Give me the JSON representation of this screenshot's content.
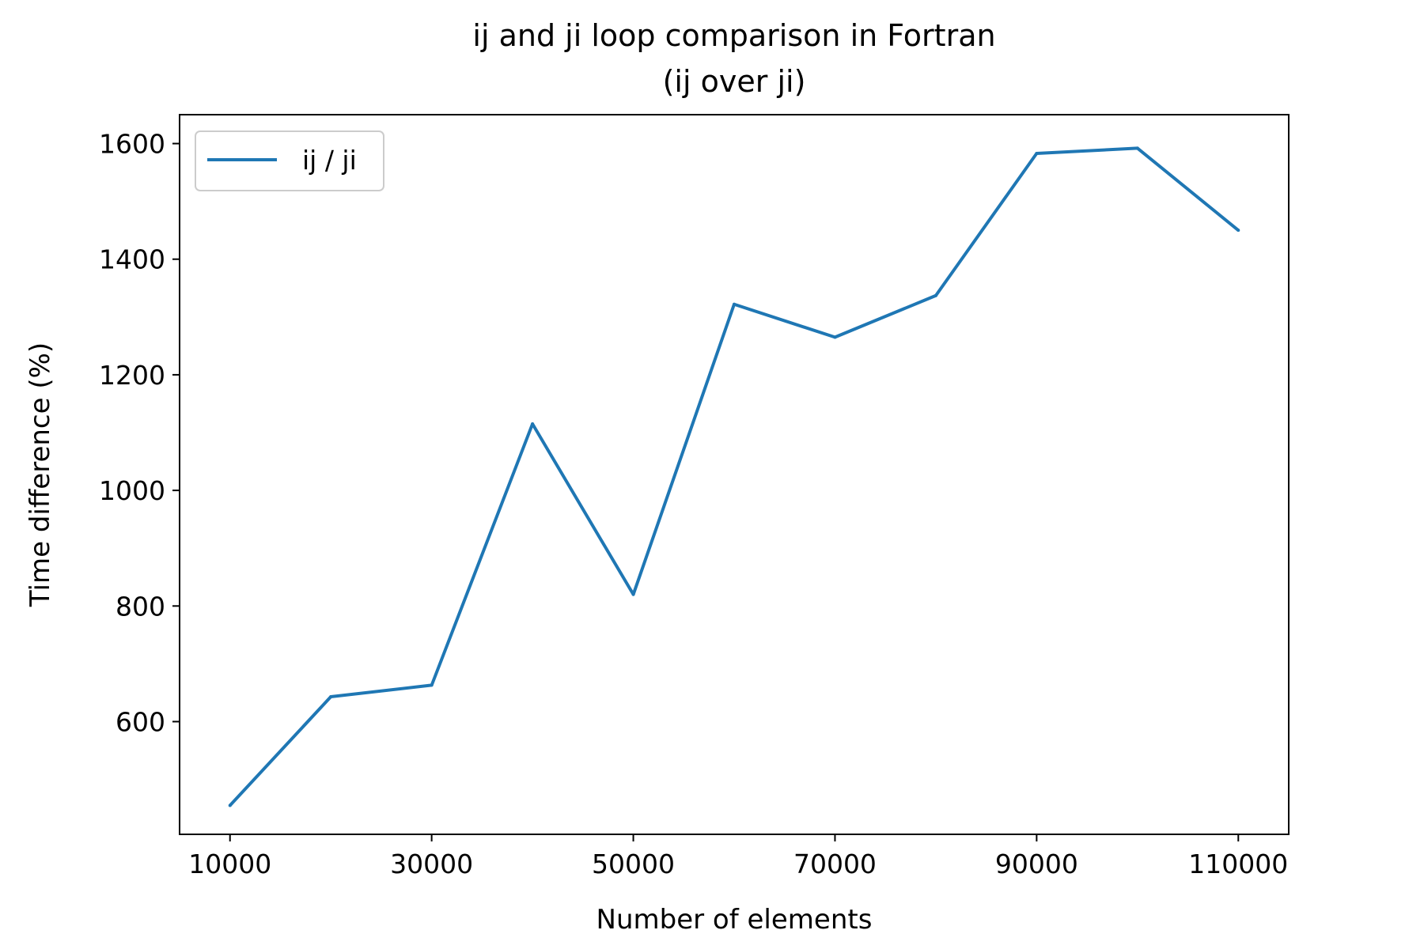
{
  "chart_data": {
    "type": "line",
    "title": "ij and ji loop comparison in Fortran",
    "subtitle": "(ij over ji)",
    "xlabel": "Number of elements",
    "ylabel": "Time difference (%)",
    "x": [
      10000,
      20000,
      30000,
      40000,
      50000,
      60000,
      70000,
      80000,
      90000,
      100000,
      110000
    ],
    "series": [
      {
        "name": "ij / ji",
        "color": "#1f77b4",
        "values": [
          455,
          643,
          663,
          1115,
          820,
          1322,
          1265,
          1337,
          1583,
          1592,
          1450
        ]
      }
    ],
    "xlim": [
      5000,
      115000
    ],
    "ylim": [
      405,
      1650
    ],
    "xticks": [
      10000,
      30000,
      50000,
      70000,
      90000,
      110000
    ],
    "yticks": [
      600,
      800,
      1000,
      1200,
      1400,
      1600
    ],
    "grid": false,
    "legend_position": "upper-left"
  }
}
